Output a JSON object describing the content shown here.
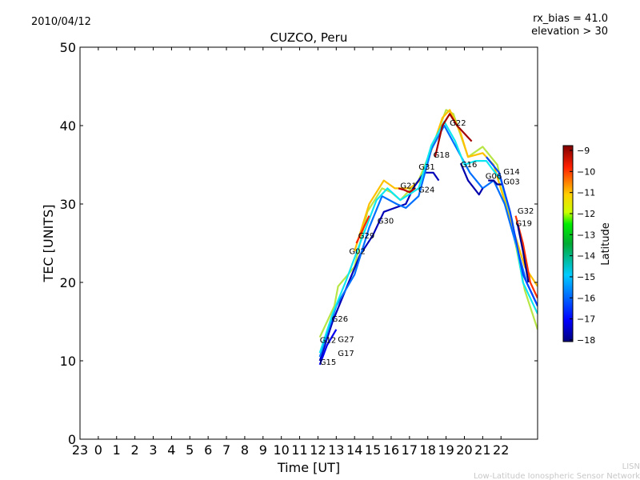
{
  "header": {
    "date": "2010/04/12",
    "rx_bias": "rx_bias = 41.0",
    "elevation": "elevation > 30"
  },
  "footer": {
    "line1": "LISN",
    "line2": "Low-Latitude Ionospheric Sensor Network"
  },
  "chart_data": {
    "type": "line",
    "title": "CUZCO, Peru",
    "xlabel": "Time [UT]",
    "ylabel": "TEC [UNITS]",
    "xlim": [
      -1,
      24
    ],
    "ylim": [
      0,
      50
    ],
    "xticks": [
      -1,
      0,
      1,
      2,
      3,
      4,
      5,
      6,
      7,
      8,
      9,
      10,
      11,
      12,
      13,
      14,
      15,
      16,
      17,
      18,
      19,
      20,
      21,
      22
    ],
    "xtick_labels": [
      "23",
      "0",
      "1",
      "2",
      "3",
      "4",
      "5",
      "6",
      "7",
      "8",
      "9",
      "10",
      "11",
      "12",
      "13",
      "14",
      "15",
      "16",
      "17",
      "18",
      "19",
      "20",
      "21",
      "22"
    ],
    "yticks": [
      0,
      10,
      20,
      30,
      40,
      50
    ],
    "ytick_labels": [
      "0",
      "10",
      "20",
      "30",
      "40",
      "50"
    ],
    "colorbar": {
      "label": "Latitude",
      "range": [
        -18,
        -9
      ],
      "colormap": "jet",
      "ticks": [
        "-9",
        "-10",
        "-11",
        "-12",
        "-13",
        "-14",
        "-15",
        "-16",
        "-17",
        "-18"
      ]
    },
    "series": [
      {
        "lat": -13,
        "points": [
          [
            12.1,
            13
          ],
          [
            12.9,
            17
          ],
          [
            13.1,
            19.5
          ],
          [
            14,
            22
          ],
          [
            14.7,
            29
          ],
          [
            15.5,
            32
          ],
          [
            16,
            31.5
          ],
          [
            16.5,
            30.5
          ],
          [
            17.5,
            33
          ],
          [
            18.2,
            37
          ],
          [
            19.0,
            42
          ],
          [
            19.4,
            41.5
          ],
          [
            20.2,
            36
          ],
          [
            21,
            37.3
          ],
          [
            21.8,
            35
          ],
          [
            22.7,
            26
          ],
          [
            23.3,
            19
          ],
          [
            24,
            14
          ]
        ]
      },
      {
        "lat": -12,
        "points": [
          [
            14.0,
            24
          ],
          [
            14.8,
            30
          ],
          [
            15.6,
            33
          ],
          [
            16.2,
            32
          ],
          [
            17,
            32
          ],
          [
            17.6,
            33
          ],
          [
            18.3,
            37.5
          ],
          [
            18.8,
            41
          ],
          [
            19.2,
            42
          ],
          [
            19.8,
            39
          ],
          [
            20.2,
            36
          ],
          [
            21,
            36.5
          ],
          [
            21.6,
            35
          ],
          [
            22.5,
            28
          ],
          [
            23.3,
            22
          ],
          [
            24,
            19.5
          ]
        ]
      },
      {
        "lat": -17.5,
        "points": [
          [
            12.1,
            10
          ],
          [
            12.8,
            15
          ],
          [
            13.5,
            19
          ],
          [
            14.3,
            23.5
          ],
          [
            15,
            26
          ],
          [
            15.6,
            29
          ],
          [
            16.2,
            29.5
          ],
          [
            16.8,
            30
          ],
          [
            17.2,
            32
          ],
          [
            17.8,
            34
          ],
          [
            18.3,
            34
          ],
          [
            18.6,
            33
          ]
        ]
      },
      {
        "lat": -15.8,
        "points": [
          [
            12.1,
            10.5
          ],
          [
            13,
            17
          ],
          [
            14,
            21
          ],
          [
            14.8,
            27
          ],
          [
            15.5,
            31
          ],
          [
            16.3,
            30
          ],
          [
            16.8,
            29.5
          ],
          [
            17.5,
            31
          ],
          [
            18.2,
            37
          ],
          [
            18.9,
            40
          ],
          [
            19.6,
            37
          ],
          [
            20.3,
            34
          ],
          [
            21,
            32
          ],
          [
            21.6,
            33
          ],
          [
            22.2,
            30
          ],
          [
            22.8,
            25
          ],
          [
            23.4,
            20
          ],
          [
            24,
            17
          ]
        ]
      },
      {
        "lat": -14.5,
        "points": [
          [
            12.1,
            11
          ],
          [
            12.8,
            16
          ],
          [
            13.5,
            20
          ],
          [
            14.3,
            25
          ],
          [
            15.2,
            30.5
          ],
          [
            15.8,
            32
          ],
          [
            16.5,
            30.5
          ],
          [
            17.5,
            32
          ],
          [
            18.2,
            37.5
          ],
          [
            18.9,
            40.5
          ],
          [
            19.5,
            38
          ],
          [
            20.0,
            35
          ],
          [
            20.6,
            35.5
          ],
          [
            21.2,
            35.5
          ],
          [
            22,
            33
          ],
          [
            22.6,
            28
          ],
          [
            23.2,
            20
          ],
          [
            24,
            16
          ]
        ]
      },
      {
        "lat": -9.3,
        "points": [
          [
            18.4,
            36
          ],
          [
            18.8,
            40
          ],
          [
            19.2,
            41.5
          ],
          [
            19.6,
            40
          ],
          [
            20.2,
            38.5
          ],
          [
            20.4,
            38
          ]
        ]
      },
      {
        "lat": -9.5,
        "points": [
          [
            16.4,
            32
          ],
          [
            16.7,
            31.8
          ],
          [
            17,
            31.5
          ],
          [
            17.3,
            32
          ]
        ]
      },
      {
        "lat": -10.5,
        "points": [
          [
            14.1,
            25
          ],
          [
            14.5,
            27
          ],
          [
            14.8,
            28.5
          ]
        ]
      },
      {
        "lat": -17.8,
        "points": [
          [
            21.3,
            33
          ],
          [
            21.6,
            33
          ],
          [
            21.8,
            32.5
          ],
          [
            22.1,
            32.5
          ]
        ]
      },
      {
        "lat": -17.6,
        "points": [
          [
            19.8,
            35.2
          ],
          [
            20.2,
            33
          ],
          [
            20.8,
            31.2
          ],
          [
            21.0,
            32
          ]
        ]
      },
      {
        "lat": -16.2,
        "points": [
          [
            21.2,
            36
          ],
          [
            21.9,
            34
          ],
          [
            22.5,
            29
          ],
          [
            23.2,
            21
          ],
          [
            24,
            17
          ]
        ]
      },
      {
        "lat": -10.6,
        "points": [
          [
            22.8,
            28.5
          ],
          [
            23.2,
            25
          ],
          [
            23.6,
            20
          ],
          [
            24,
            18
          ]
        ]
      },
      {
        "lat": -17.9,
        "points": [
          [
            22.9,
            27.5
          ],
          [
            23.2,
            24
          ],
          [
            23.5,
            20
          ]
        ]
      },
      {
        "lat": -17.0,
        "points": [
          [
            12.1,
            9.5
          ],
          [
            12.5,
            12
          ],
          [
            13,
            14
          ]
        ]
      }
    ],
    "annotations": [
      {
        "text": "G15",
        "x": 12.1,
        "y": 9.5
      },
      {
        "text": "G17",
        "x": 12.1,
        "y": 10.6
      },
      {
        "text": "G12",
        "x": 12.1,
        "y": 12.3
      },
      {
        "text": "G27",
        "x": 12.45,
        "y": 12.4
      },
      {
        "text": "G26",
        "x": 12.75,
        "y": 15.0
      },
      {
        "text": "G02",
        "x": 13.7,
        "y": 23.6
      },
      {
        "text": "G29",
        "x": 14.2,
        "y": 25.6
      },
      {
        "text": "G30",
        "x": 15.25,
        "y": 27.5
      },
      {
        "text": "G21",
        "x": 16.5,
        "y": 32.0
      },
      {
        "text": "G24",
        "x": 16.7,
        "y": 31.5
      },
      {
        "text": "G31",
        "x": 17.5,
        "y": 34.4
      },
      {
        "text": "G18",
        "x": 18.3,
        "y": 35.9
      },
      {
        "text": "G22",
        "x": 19.2,
        "y": 40.0
      },
      {
        "text": "G16",
        "x": 19.8,
        "y": 34.7
      },
      {
        "text": "G06",
        "x": 21.15,
        "y": 33.2
      },
      {
        "text": "G03",
        "x": 21.7,
        "y": 32.5
      },
      {
        "text": "G14",
        "x": 22.0,
        "y": 33.8
      },
      {
        "text": "G32",
        "x": 22.9,
        "y": 28.8
      },
      {
        "text": "G19",
        "x": 22.8,
        "y": 27.2
      }
    ]
  }
}
